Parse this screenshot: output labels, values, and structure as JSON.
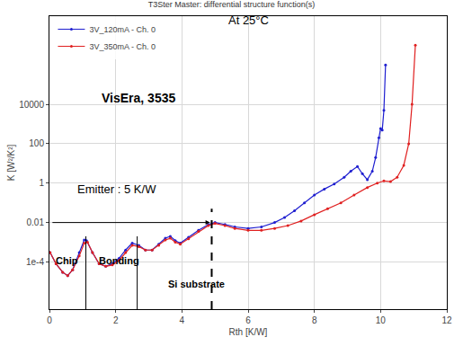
{
  "chart_data": {
    "type": "line",
    "title": "T3Ster Master: differential structure function(s)",
    "x_label": "Rth [K/W]",
    "y_label": "K [W²/K²]",
    "log": "y",
    "grid": true,
    "legend": "top left",
    "xlim": [
      0,
      12
    ],
    "xticks": [
      0,
      2,
      4,
      6,
      8,
      10,
      12
    ],
    "ylim": [
      4e-07,
      300000000.0
    ],
    "yticks": [
      {
        "value": 0.0001,
        "label": "1e-4"
      },
      0.01,
      1,
      100,
      10000
    ],
    "series": [
      {
        "name": "3V_120mA - Ch. 0",
        "color": "#1f1fd0",
        "marker": "dot",
        "x": [
          0.02,
          0.2,
          0.4,
          0.55,
          0.7,
          0.9,
          1.05,
          1.12,
          1.3,
          1.5,
          1.7,
          1.9,
          2.1,
          2.3,
          2.5,
          2.7,
          2.9,
          3.1,
          3.3,
          3.5,
          3.65,
          3.8,
          3.95,
          4.2,
          4.5,
          4.8,
          5.0,
          5.3,
          5.6,
          6.0,
          6.4,
          6.8,
          7.1,
          7.4,
          7.7,
          8.0,
          8.3,
          8.6,
          8.9,
          9.1,
          9.3,
          9.45,
          9.6,
          9.75,
          9.85,
          9.95,
          10.0,
          10.05,
          10.1,
          10.15
        ],
        "values": [
          0.0003,
          8e-05,
          3e-05,
          2e-05,
          4e-05,
          0.0003,
          0.0013,
          0.0012,
          0.0003,
          8e-05,
          6e-05,
          8e-05,
          0.00015,
          0.0004,
          0.0009,
          0.0007,
          0.0004,
          0.0004,
          0.0008,
          0.0016,
          0.002,
          0.0012,
          0.0009,
          0.0018,
          0.004,
          0.008,
          0.01,
          0.008,
          0.006,
          0.005,
          0.006,
          0.01,
          0.018,
          0.04,
          0.1,
          0.25,
          0.5,
          0.9,
          2,
          4,
          7,
          3,
          1.5,
          4,
          20,
          200,
          600,
          500,
          5000,
          1000000
        ]
      },
      {
        "name": "3V_350mA - Ch. 0",
        "color": "#e02020",
        "marker": "dot",
        "x": [
          0.02,
          0.2,
          0.4,
          0.55,
          0.7,
          0.9,
          1.05,
          1.15,
          1.3,
          1.5,
          1.7,
          1.9,
          2.1,
          2.3,
          2.5,
          2.7,
          2.9,
          3.1,
          3.3,
          3.5,
          3.65,
          3.8,
          3.95,
          4.2,
          4.5,
          4.8,
          5.0,
          5.3,
          5.6,
          6.0,
          6.4,
          6.8,
          7.2,
          7.6,
          8.0,
          8.4,
          8.8,
          9.2,
          9.6,
          9.9,
          10.1,
          10.3,
          10.5,
          10.7,
          10.85,
          10.95,
          11.05
        ],
        "values": [
          0.0003,
          8e-05,
          3e-05,
          2e-05,
          4e-05,
          0.0002,
          0.0009,
          0.001,
          0.0003,
          8e-05,
          6e-05,
          7e-05,
          0.00012,
          0.0003,
          0.0007,
          0.0006,
          0.0004,
          0.0004,
          0.0007,
          0.0013,
          0.0016,
          0.001,
          0.0008,
          0.0015,
          0.0035,
          0.007,
          0.009,
          0.007,
          0.005,
          0.004,
          0.004,
          0.005,
          0.007,
          0.012,
          0.025,
          0.05,
          0.1,
          0.25,
          0.6,
          1,
          1.3,
          1.2,
          2,
          8,
          100,
          10000,
          10000000
        ]
      }
    ],
    "annotations": [
      "At 25°C",
      "VisEra, 3535",
      "Emitter : 5 K/W",
      "Chip",
      "Bonding",
      "Si substrate"
    ],
    "markers": [
      {
        "x": 1.1,
        "y": 0.002,
        "line_style": "solid"
      },
      {
        "x": 2.65,
        "y": 0.002,
        "line_style": "solid"
      },
      {
        "x": 4.9,
        "y": 0.05,
        "line_style": "dashed"
      }
    ],
    "arrow": {
      "x": [
        0.05,
        4.85
      ],
      "y": 0.01
    }
  }
}
